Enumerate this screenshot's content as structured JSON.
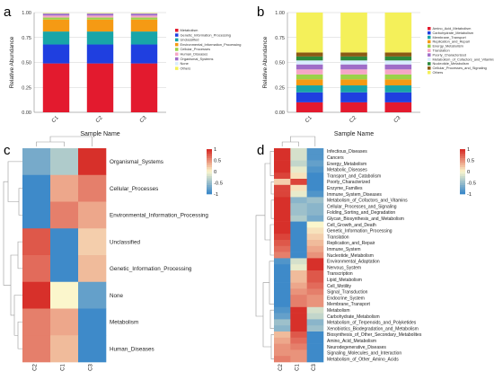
{
  "panel_labels": [
    "a",
    "b",
    "c",
    "d"
  ],
  "colors": {
    "metabolism": "#e31a2e",
    "genetic": "#1f3fe0",
    "unclassified": "#18a5a8",
    "environmental": "#f59a14",
    "cellular": "#9bd24a",
    "human": "#f6a6c6",
    "organismal": "#9f6dc8",
    "none": "#d9ecff",
    "others": "#f4f05a",
    "heat_low": "#3e8ac9",
    "heat_mid": "#fbf6cc",
    "heat_high": "#d7302a"
  },
  "chart_data": [
    {
      "type": "bar",
      "panel": "a",
      "stacked": true,
      "categories": [
        "C1",
        "C2",
        "C3"
      ],
      "xlabel": "Sample Name",
      "ylabel": "Relative Abundance",
      "ylim": [
        0,
        1
      ],
      "yticks": [
        "0.00",
        "0.25",
        "0.50",
        "0.75",
        "1.00"
      ],
      "legend_position": "right",
      "series": [
        {
          "name": "Metabolism",
          "color": "#e31a2e",
          "values": [
            0.49,
            0.49,
            0.49
          ]
        },
        {
          "name": "Genetic_Information_Processing",
          "color": "#1f3fe0",
          "values": [
            0.19,
            0.19,
            0.19
          ]
        },
        {
          "name": "Unclassified",
          "color": "#18a5a8",
          "values": [
            0.13,
            0.13,
            0.13
          ]
        },
        {
          "name": "Environmental_Information_Processing",
          "color": "#f59a14",
          "values": [
            0.12,
            0.12,
            0.12
          ]
        },
        {
          "name": "Cellular_Processes",
          "color": "#9bd24a",
          "values": [
            0.02,
            0.02,
            0.02
          ]
        },
        {
          "name": "Human_Diseases",
          "color": "#f6a6c6",
          "values": [
            0.02,
            0.02,
            0.02
          ]
        },
        {
          "name": "Organismal_Systems",
          "color": "#9f6dc8",
          "values": [
            0.02,
            0.02,
            0.02
          ]
        },
        {
          "name": "None",
          "color": "#d9ecff",
          "values": [
            0.005,
            0.005,
            0.005
          ]
        },
        {
          "name": "Others",
          "color": "#f4f05a",
          "values": [
            0.005,
            0.005,
            0.005
          ]
        }
      ]
    },
    {
      "type": "bar",
      "panel": "b",
      "stacked": true,
      "categories": [
        "C1",
        "C2",
        "C3"
      ],
      "xlabel": "Sample Name",
      "ylabel": "Relative Abundance",
      "ylim": [
        0,
        1
      ],
      "yticks": [
        "0.00",
        "0.25",
        "0.50",
        "0.75",
        "1.00"
      ],
      "legend_position": "right",
      "series": [
        {
          "name": "Amino_Acid_Metabolism",
          "color": "#e31a2e",
          "values": [
            0.1,
            0.1,
            0.1
          ]
        },
        {
          "name": "Carbohydrate_Metabolism",
          "color": "#1f3fe0",
          "values": [
            0.1,
            0.1,
            0.1
          ]
        },
        {
          "name": "Membrane_Transport",
          "color": "#18a5a8",
          "values": [
            0.07,
            0.07,
            0.07
          ]
        },
        {
          "name": "Replication_and_Repair",
          "color": "#f59a14",
          "values": [
            0.06,
            0.06,
            0.06
          ]
        },
        {
          "name": "Energy_Metabolism",
          "color": "#9bd24a",
          "values": [
            0.05,
            0.05,
            0.05
          ]
        },
        {
          "name": "Translation",
          "color": "#f6a6c6",
          "values": [
            0.05,
            0.05,
            0.05
          ]
        },
        {
          "name": "Poorly_Characterized",
          "color": "#9f6dc8",
          "values": [
            0.05,
            0.05,
            0.05
          ]
        },
        {
          "name": "Metabolism_of_Cofactors_and_Vitamins",
          "color": "#d9ecff",
          "values": [
            0.04,
            0.04,
            0.04
          ]
        },
        {
          "name": "Nucleotide_Metabolism",
          "color": "#2c8a3c",
          "values": [
            0.04,
            0.04,
            0.04
          ]
        },
        {
          "name": "Cellular_Processes_and_Signaling",
          "color": "#8a5a14",
          "values": [
            0.04,
            0.04,
            0.04
          ]
        },
        {
          "name": "Others",
          "color": "#f4f05a",
          "values": [
            0.4,
            0.4,
            0.4
          ]
        }
      ]
    },
    {
      "type": "heatmap",
      "panel": "c",
      "columns": [
        "C2",
        "C1",
        "C3"
      ],
      "rows": [
        "Organismal_Systems",
        "Cellular_Processes",
        "Environmental_Information_Processing",
        "Unclassified",
        "Genetic_Information_Processing",
        "None",
        "Metabolism",
        "Human_Diseases"
      ],
      "values": [
        [
          -0.7,
          -0.4,
          1.1
        ],
        [
          -1.1,
          0.4,
          0.6
        ],
        [
          -1.1,
          0.6,
          0.4
        ],
        [
          0.8,
          -1.1,
          0.2
        ],
        [
          0.7,
          -1.1,
          0.3
        ],
        [
          1.1,
          0.0,
          -0.8
        ],
        [
          0.6,
          0.4,
          -1.1
        ],
        [
          0.6,
          0.3,
          -1.1
        ]
      ],
      "colorbar": {
        "min": -1,
        "max": 1,
        "ticks": [
          "1",
          "0.5",
          "0",
          "-0.5",
          "-1"
        ]
      }
    },
    {
      "type": "heatmap",
      "panel": "d",
      "columns": [
        "C2",
        "C1",
        "C3"
      ],
      "rows": [
        "Infectious_Diseases",
        "Cancers",
        "Energy_Metabolism",
        "Metabolic_Diseases",
        "Transport_and_Catabolism",
        "Poorly_Characterized",
        "Enzyme_Families",
        "Immune_System_Diseases",
        "Metabolism_of_Cofactors_and_Vitamins",
        "Cellular_Processes_and_Signaling",
        "Folding_Sorting_and_Degradation",
        "Glycan_Biosynthesis_and_Metabolism",
        "Cell_Growth_and_Death",
        "Genetic_Information_Processing",
        "Translation",
        "Replication_and_Repair",
        "Immune_System",
        "Nucleotide_Metabolism",
        "Environmental_Adaptation",
        "Nervous_System",
        "Transcription",
        "Lipid_Metabolism",
        "Cell_Motility",
        "Signal_Transduction",
        "Endocrine_System",
        "Membrane_Transport",
        "Metabolism",
        "Carbohydrate_Metabolism",
        "Metabolism_of_Terpenoids_and_Polyketides",
        "Xenobiotics_Biodegradation_and_Metabolism",
        "Biosynthesis_of_Other_Secondary_Metabolites",
        "Amino_Acid_Metabolism",
        "Neurodegenerative_Diseases",
        "Signaling_Molecules_and_Interaction",
        "Metabolism_of_Other_Amino_Acids"
      ],
      "values": [
        [
          1.1,
          -0.2,
          -0.9
        ],
        [
          1.1,
          -0.2,
          -0.9
        ],
        [
          1.1,
          -0.3,
          -0.8
        ],
        [
          1.0,
          -0.1,
          -0.9
        ],
        [
          0.9,
          0.1,
          -1.0
        ],
        [
          0.2,
          0.9,
          -1.1
        ],
        [
          0.9,
          0.1,
          -1.0
        ],
        [
          0.9,
          -0.1,
          -0.9
        ],
        [
          1.1,
          -0.6,
          -0.5
        ],
        [
          1.1,
          -0.5,
          -0.6
        ],
        [
          1.1,
          -0.5,
          -0.6
        ],
        [
          1.1,
          -0.4,
          -0.7
        ],
        [
          1.0,
          -1.0,
          0.0
        ],
        [
          1.0,
          -1.0,
          0.1
        ],
        [
          0.9,
          -1.1,
          0.2
        ],
        [
          0.8,
          -1.1,
          0.3
        ],
        [
          0.7,
          -1.1,
          0.4
        ],
        [
          0.6,
          -1.1,
          0.5
        ],
        [
          -0.9,
          -0.2,
          1.1
        ],
        [
          -1.0,
          -0.1,
          1.1
        ],
        [
          -1.1,
          0.3,
          0.8
        ],
        [
          -1.1,
          0.3,
          0.8
        ],
        [
          -1.1,
          0.4,
          0.7
        ],
        [
          -1.1,
          0.5,
          0.6
        ],
        [
          -1.1,
          0.6,
          0.5
        ],
        [
          -1.1,
          0.6,
          0.5
        ],
        [
          -0.9,
          1.1,
          -0.2
        ],
        [
          -0.8,
          1.1,
          -0.3
        ],
        [
          -0.5,
          1.1,
          -0.6
        ],
        [
          -0.6,
          1.1,
          -0.5
        ],
        [
          0.3,
          0.8,
          -1.1
        ],
        [
          0.4,
          0.7,
          -1.1
        ],
        [
          0.5,
          0.6,
          -1.1
        ],
        [
          0.5,
          0.5,
          -1.1
        ],
        [
          0.6,
          0.5,
          -1.1
        ]
      ],
      "colorbar": {
        "min": -1,
        "max": 1,
        "ticks": [
          "1",
          "0.5",
          "0",
          "-0.5",
          "-1"
        ]
      }
    }
  ]
}
